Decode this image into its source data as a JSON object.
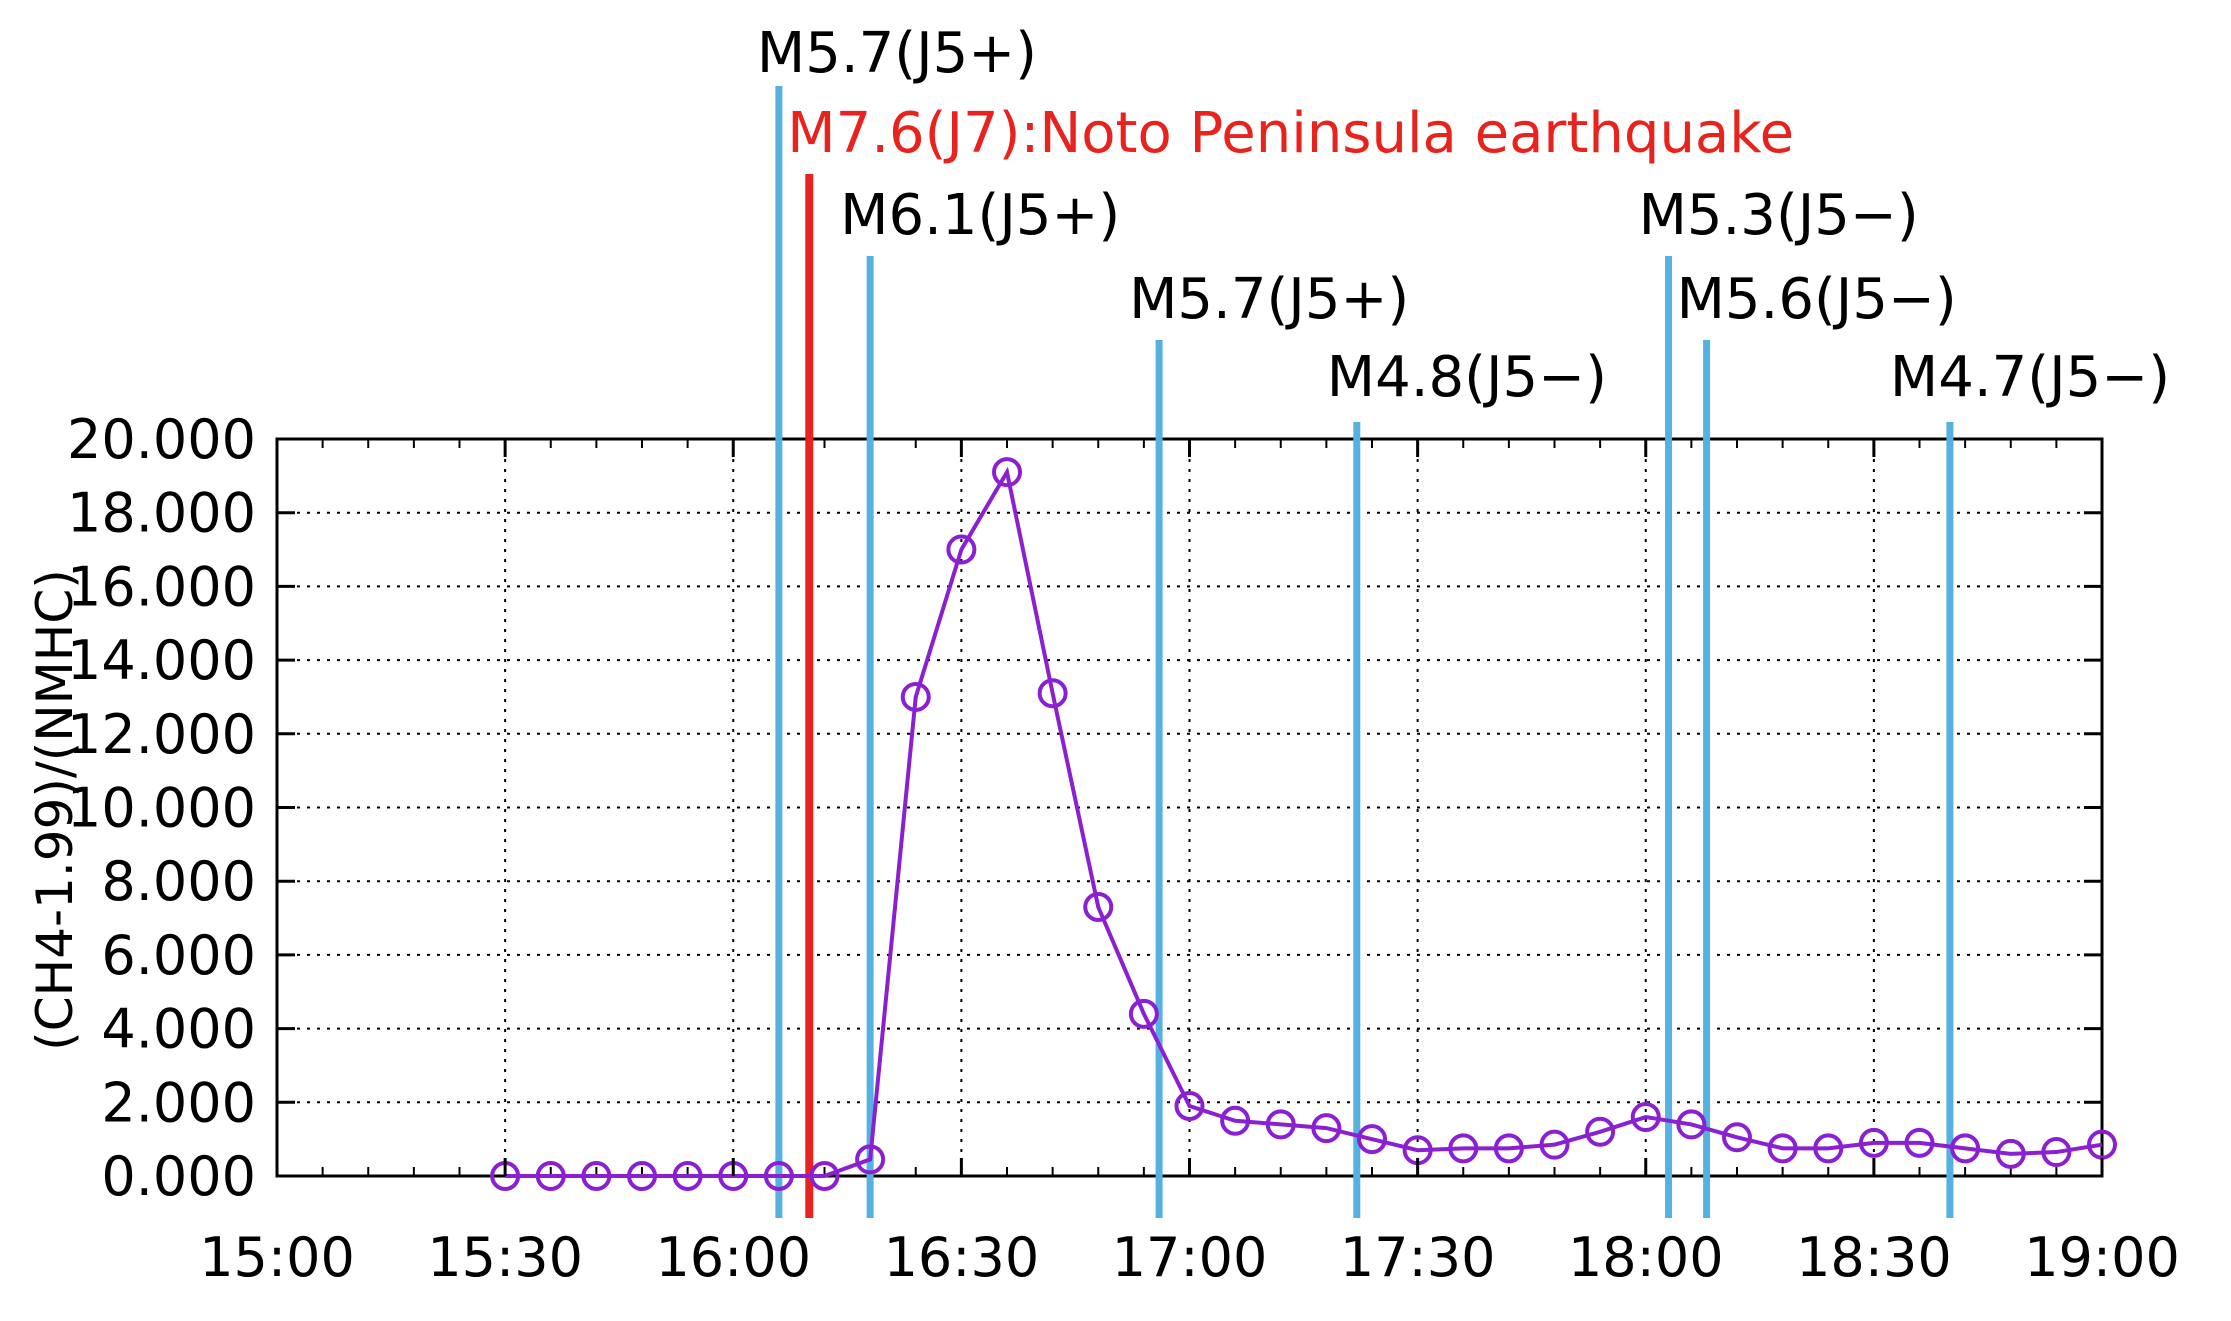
{
  "chart_data": {
    "type": "line",
    "ylabel": "(CH4-1.99)/(NMHC)",
    "xlabel": "",
    "title": "",
    "xlim": [
      "15:00",
      "19:00"
    ],
    "ylim": [
      0,
      20
    ],
    "x_ticks": [
      "15:00",
      "15:30",
      "16:00",
      "16:30",
      "17:00",
      "17:30",
      "18:00",
      "18:30",
      "19:00"
    ],
    "y_ticks": [
      "0.000",
      "2.000",
      "4.000",
      "6.000",
      "8.000",
      "10.000",
      "12.000",
      "14.000",
      "16.000",
      "18.000",
      "20.000"
    ],
    "grid": true,
    "series": [
      {
        "color": "#8b1fd2",
        "marker": "open-circle",
        "x": [
          "15:30",
          "15:36",
          "15:42",
          "15:48",
          "15:54",
          "16:00",
          "16:06",
          "16:12",
          "16:18",
          "16:24",
          "16:30",
          "16:36",
          "16:42",
          "16:48",
          "16:54",
          "17:00",
          "17:06",
          "17:12",
          "17:18",
          "17:24",
          "17:30",
          "17:36",
          "17:42",
          "17:48",
          "17:54",
          "18:00",
          "18:06",
          "18:12",
          "18:18",
          "18:24",
          "18:30",
          "18:36",
          "18:42",
          "18:48",
          "18:54",
          "19:00"
        ],
        "values": [
          0.0,
          0.0,
          0.0,
          0.0,
          0.0,
          0.0,
          0.0,
          0.0,
          0.45,
          13.0,
          17.0,
          19.1,
          13.1,
          7.3,
          4.4,
          1.9,
          1.5,
          1.4,
          1.3,
          1.0,
          0.7,
          0.75,
          0.75,
          0.85,
          1.2,
          1.6,
          1.4,
          1.05,
          0.75,
          0.75,
          0.9,
          0.9,
          0.75,
          0.6,
          0.65,
          0.85
        ]
      }
    ],
    "events": [
      {
        "time": "16:06",
        "label": "M5.7(J5+)",
        "color": "#55b1e0",
        "main": false
      },
      {
        "time": "16:10",
        "label": "M7.6(J7):Noto Peninsula earthquake",
        "color": "#e8231e",
        "main": true
      },
      {
        "time": "16:18",
        "label": "M6.1(J5+)",
        "color": "#55b1e0",
        "main": false
      },
      {
        "time": "16:56",
        "label": "M5.7(J5+)",
        "color": "#55b1e0",
        "main": false
      },
      {
        "time": "17:22",
        "label": "M4.8(J5−)",
        "color": "#55b1e0",
        "main": false
      },
      {
        "time": "18:03",
        "label": "M5.3(J5−)",
        "color": "#55b1e0",
        "main": false
      },
      {
        "time": "18:08",
        "label": "M5.6(J5−)",
        "color": "#55b1e0",
        "main": false
      },
      {
        "time": "18:40",
        "label": "M4.7(J5−)",
        "color": "#55b1e0",
        "main": false
      }
    ]
  }
}
